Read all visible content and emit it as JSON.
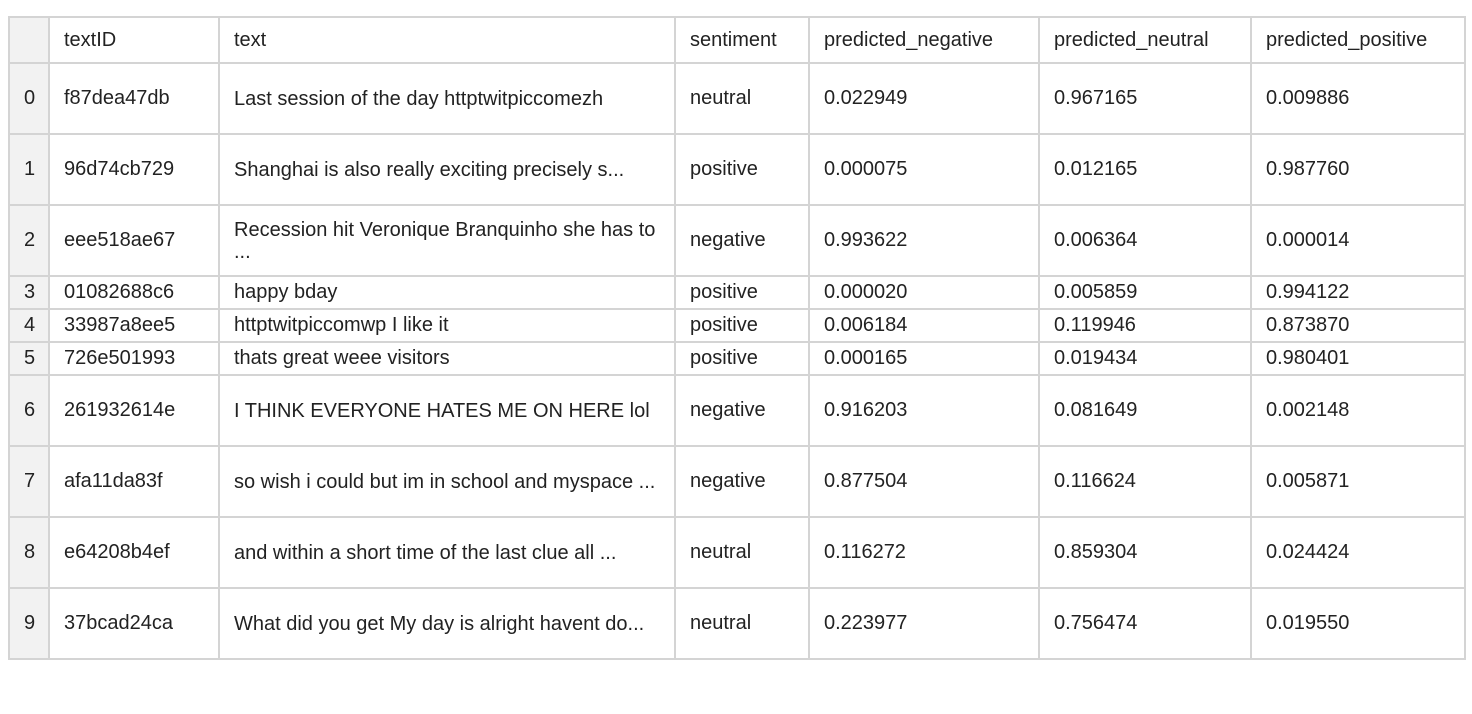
{
  "table": {
    "columns": [
      "",
      "textID",
      "text",
      "sentiment",
      "predicted_negative",
      "predicted_neutral",
      "predicted_positive"
    ],
    "rows": [
      {
        "index": "0",
        "textID": "f87dea47db",
        "text": "Last session of the day httptwitpiccomezh",
        "sentiment": "neutral",
        "predicted_negative": "0.022949",
        "predicted_neutral": "0.967165",
        "predicted_positive": "0.009886"
      },
      {
        "index": "1",
        "textID": "96d74cb729",
        "text": "Shanghai is also really exciting precisely s...",
        "sentiment": "positive",
        "predicted_negative": "0.000075",
        "predicted_neutral": "0.012165",
        "predicted_positive": "0.987760"
      },
      {
        "index": "2",
        "textID": "eee518ae67",
        "text": "Recession hit Veronique Branquinho she has to ...",
        "sentiment": "negative",
        "predicted_negative": "0.993622",
        "predicted_neutral": "0.006364",
        "predicted_positive": "0.000014"
      },
      {
        "index": "3",
        "textID": "01082688c6",
        "text": "happy bday",
        "sentiment": "positive",
        "predicted_negative": "0.000020",
        "predicted_neutral": "0.005859",
        "predicted_positive": "0.994122"
      },
      {
        "index": "4",
        "textID": "33987a8ee5",
        "text": "httptwitpiccomwp I like it",
        "sentiment": "positive",
        "predicted_negative": "0.006184",
        "predicted_neutral": "0.119946",
        "predicted_positive": "0.873870"
      },
      {
        "index": "5",
        "textID": "726e501993",
        "text": "thats great weee visitors",
        "sentiment": "positive",
        "predicted_negative": "0.000165",
        "predicted_neutral": "0.019434",
        "predicted_positive": "0.980401"
      },
      {
        "index": "6",
        "textID": "261932614e",
        "text": "I THINK EVERYONE HATES ME ON HERE lol",
        "sentiment": "negative",
        "predicted_negative": "0.916203",
        "predicted_neutral": "0.081649",
        "predicted_positive": "0.002148"
      },
      {
        "index": "7",
        "textID": "afa11da83f",
        "text": "so wish i could but im in school and myspace ...",
        "sentiment": "negative",
        "predicted_negative": "0.877504",
        "predicted_neutral": "0.116624",
        "predicted_positive": "0.005871"
      },
      {
        "index": "8",
        "textID": "e64208b4ef",
        "text": "and within a short time of the last clue all ...",
        "sentiment": "neutral",
        "predicted_negative": "0.116272",
        "predicted_neutral": "0.859304",
        "predicted_positive": "0.024424"
      },
      {
        "index": "9",
        "textID": "37bcad24ca",
        "text": "What did you get My day is alright havent do...",
        "sentiment": "neutral",
        "predicted_negative": "0.223977",
        "predicted_neutral": "0.756474",
        "predicted_positive": "0.019550"
      }
    ]
  }
}
